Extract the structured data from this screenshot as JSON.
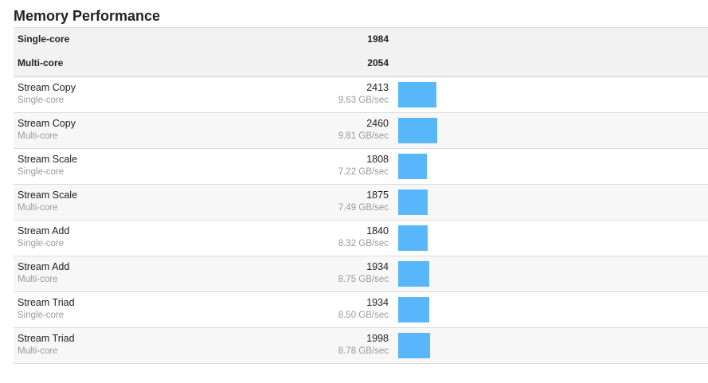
{
  "section": {
    "title": "Memory Performance"
  },
  "summary": [
    {
      "label": "Single-core",
      "score": "1984"
    },
    {
      "label": "Multi-core",
      "score": "2054"
    }
  ],
  "bar_scale_max": 2460,
  "bar_color": "#57b7fa",
  "rows": [
    {
      "name": "Stream Copy",
      "sub": "Single-core",
      "score": "2413",
      "rate": "9.63 GB/sec",
      "value": 2413
    },
    {
      "name": "Stream Copy",
      "sub": "Multi-core",
      "score": "2460",
      "rate": "9.81 GB/sec",
      "value": 2460
    },
    {
      "name": "Stream Scale",
      "sub": "Single-core",
      "score": "1808",
      "rate": "7.22 GB/sec",
      "value": 1808
    },
    {
      "name": "Stream Scale",
      "sub": "Multi-core",
      "score": "1875",
      "rate": "7.49 GB/sec",
      "value": 1875
    },
    {
      "name": "Stream Add",
      "sub": "Single-core",
      "score": "1840",
      "rate": "8.32 GB/sec",
      "value": 1840
    },
    {
      "name": "Stream Add",
      "sub": "Multi-core",
      "score": "1934",
      "rate": "8.75 GB/sec",
      "value": 1934
    },
    {
      "name": "Stream Triad",
      "sub": "Single-core",
      "score": "1934",
      "rate": "8.50 GB/sec",
      "value": 1934
    },
    {
      "name": "Stream Triad",
      "sub": "Multi-core",
      "score": "1998",
      "rate": "8.78 GB/sec",
      "value": 1998
    }
  ]
}
